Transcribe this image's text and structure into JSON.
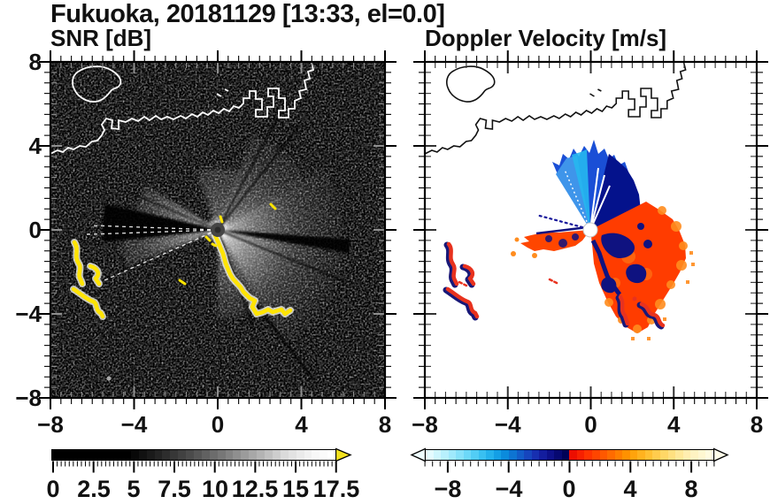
{
  "title": "Fukuoka, 20181129 [13:33, el=0.0]",
  "colors": {
    "axis": "#000000",
    "snr_background": "#000000",
    "doppler_background": "#ffffff",
    "coast_on_snr": "#ffffff",
    "coast_on_doppler": "#111111",
    "snr_hard_target": "#ffe400",
    "doppler_positive": "#ff3c00",
    "doppler_negative": "#1a4fd6",
    "doppler_aliased_navy": "#0f1280"
  },
  "panels": {
    "snr": {
      "title": "SNR [dB]",
      "xtick_labels": [
        "−8",
        "−4",
        "0",
        "4",
        "8"
      ],
      "ytick_labels": [
        "8",
        "4",
        "0",
        "−4",
        "−8"
      ],
      "colorbar": {
        "tick_labels": [
          "0",
          "2.5",
          "5",
          "7.5",
          "10",
          "12.5",
          "15",
          "17.5"
        ],
        "overflow_color": "#f2e11e",
        "cells": [
          "#000000",
          "#000000",
          "#000000",
          "#000000",
          "#000000",
          "#000000",
          "#000000",
          "#000000",
          "#000000",
          "#000000",
          "#080808",
          "#111111",
          "#1a1a1a",
          "#232323",
          "#2d2d2d",
          "#373737",
          "#414141",
          "#4b4b4b",
          "#565656",
          "#616161",
          "#6c6c6c",
          "#777777",
          "#838383",
          "#8f8f8f",
          "#9b9b9b",
          "#a7a7a7",
          "#b3b3b3",
          "#c0c0c0",
          "#cdcdcd",
          "#dadada",
          "#e2e2e2",
          "#eaeaea",
          "#f1f1f1",
          "#f7f7f7",
          "#fbfbfb",
          "#ffffff"
        ]
      }
    },
    "doppler": {
      "title": "Doppler Velocity [m/s]",
      "xtick_labels": [
        "−8",
        "−4",
        "0",
        "4",
        "8"
      ],
      "colorbar": {
        "tick_labels": [
          "−8",
          "−4",
          "0",
          "4",
          "8"
        ],
        "underflow_color": "#eefdff",
        "overflow_color": "#fffde9",
        "cells": [
          "#e4fbff",
          "#cef6fe",
          "#b7f0fd",
          "#9fe9fc",
          "#86e1fa",
          "#6cd8f8",
          "#52cdf5",
          "#39c0f1",
          "#24b1ec",
          "#149fe5",
          "#0b8bdc",
          "#0d74d2",
          "#125cc8",
          "#1645bd",
          "#172fb0",
          "#131d9e",
          "#0d1089",
          "#060871",
          "#000257",
          "#ec0e00",
          "#f72000",
          "#ff3300",
          "#ff4500",
          "#ff5800",
          "#ff6b00",
          "#ff7e00",
          "#ff9100",
          "#ffa30c",
          "#ffb21f",
          "#ffc033",
          "#ffcc4d",
          "#ffd766",
          "#ffe080",
          "#ffe899",
          "#ffeeb0",
          "#fff3c2",
          "#fff7d1",
          "#fffbe0"
        ]
      }
    }
  },
  "chart_data": [
    {
      "type": "heatmap",
      "title": "SNR [dB]",
      "xlim": [
        -8,
        8
      ],
      "ylim": [
        -8,
        8
      ],
      "x_ticks": [
        -8,
        -4,
        0,
        4,
        8
      ],
      "y_ticks": [
        8,
        4,
        0,
        -4,
        -8
      ],
      "minor_tick_step": 0.5,
      "grid": false,
      "colorbar": {
        "range": [
          0,
          17.5
        ],
        "tick_step": 2.5,
        "colormap": "black-to-white grayscale with yellow overflow arrow",
        "orientation": "horizontal-below"
      },
      "features": [
        {
          "name": "radar-origin",
          "x": 0,
          "y": 0,
          "value": "dark disk at scan center"
        },
        {
          "name": "background",
          "value": "low-SNR black speckle noise over full domain"
        },
        {
          "name": "bright-return-fan-ESE",
          "azimuth_deg": [
            60,
            150
          ],
          "radius_km": 6,
          "value": "high SNR grayscale glow"
        },
        {
          "name": "bright-return-fan-NE",
          "azimuth_deg": [
            20,
            60
          ],
          "radius_km": 5,
          "value": "moderate SNR glow with dark spokes"
        },
        {
          "name": "bright-return-wedges-W",
          "azimuth_deg": [
            248,
            302
          ],
          "radius_km": 4.5,
          "value": "two bright lobes separated by black shadow wedge"
        },
        {
          "name": "hard-target-ridge",
          "path_km": [
            [
              0.2,
              -0.6
            ],
            [
              1.5,
              -3.0
            ],
            [
              3.5,
              -3.9
            ]
          ],
          "value": "saturated yellow echo (> 17.5 dB)"
        },
        {
          "name": "hard-targets-west",
          "region_km": [
            [
              -7.2,
              -1.4
            ],
            [
              -5.4,
              -4.2
            ]
          ],
          "value": "saturated yellow echoes"
        },
        {
          "name": "coastline",
          "value": "white coastline with port piers across northern third, island near (-6.5, 7)"
        }
      ]
    },
    {
      "type": "heatmap",
      "title": "Doppler Velocity [m/s]",
      "xlim": [
        -8,
        8
      ],
      "ylim": [
        -8,
        8
      ],
      "x_ticks": [
        -8,
        -4,
        0,
        4,
        8
      ],
      "y_ticks": [
        8,
        4,
        0,
        -4,
        -8
      ],
      "minor_tick_step": 0.5,
      "grid": false,
      "colorbar": {
        "range": [
          -9.5,
          9.5
        ],
        "tick_step": 4,
        "colormap": "light-cyan to navy (negative), red to cream (positive), arrows both ends",
        "orientation": "horizontal-below"
      },
      "features": [
        {
          "name": "radar-origin",
          "x": 0,
          "y": 0,
          "value": "white disk at scan center"
        },
        {
          "name": "negative-velocity-fan",
          "azimuth_deg": [
            -48,
            28
          ],
          "radius_km": 3,
          "value_m_s": [
            -2,
            -8
          ],
          "value": "blue fan north of radar, navy on east flank"
        },
        {
          "name": "positive-velocity-fan",
          "azimuth_deg": [
            60,
            185
          ],
          "radius_km": 4.5,
          "value_m_s": [
            2,
            8
          ],
          "value": "red/orange fan SE of radar with navy aliased patches"
        },
        {
          "name": "positive-velocity-wedge-W",
          "azimuth_deg": [
            255,
            272
          ],
          "radius_km": 3.2,
          "value_m_s": [
            2,
            6
          ],
          "value": "red wedge pointing west"
        },
        {
          "name": "echoes-west",
          "region_km": [
            [
              -7.2,
              -1.4
            ],
            [
              -5.4,
              -4.2
            ]
          ],
          "value": "red echoes with navy fringes"
        },
        {
          "name": "echoes-SE-hooks",
          "region_km": [
            [
              1.4,
              -3.2
            ],
            [
              3.6,
              -4.4
            ]
          ],
          "value": "small red/navy hooks"
        },
        {
          "name": "coastline",
          "value": "black coastline, same geography as SNR panel"
        }
      ]
    }
  ]
}
